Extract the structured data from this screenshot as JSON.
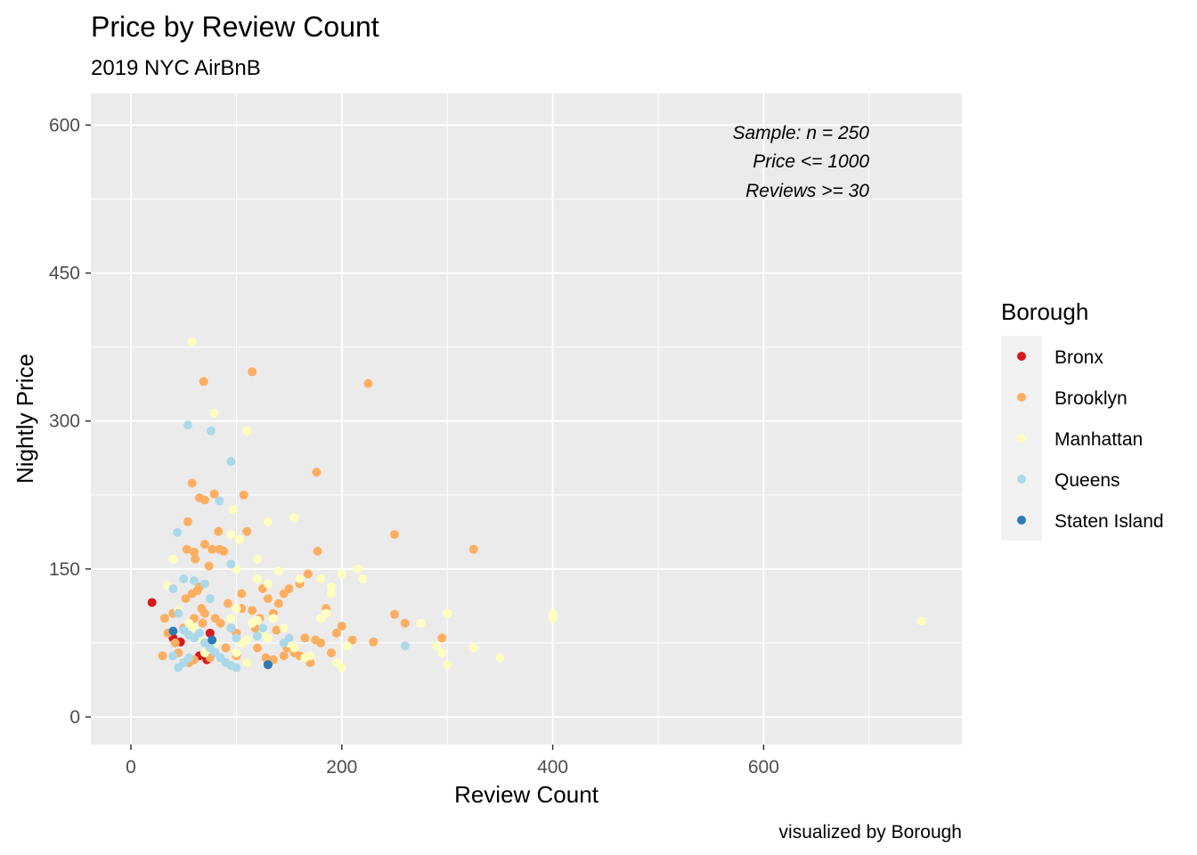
{
  "chart_data": {
    "type": "scatter",
    "title": "Price by Review Count",
    "subtitle": "2019 NYC AirBnB",
    "xlabel": "Review Count",
    "ylabel": "Nightly Price",
    "caption": "visualized by Borough",
    "xlim": [
      -38,
      788
    ],
    "ylim": [
      -28,
      632
    ],
    "x_ticks": [
      0,
      200,
      400,
      600
    ],
    "y_ticks": [
      0,
      150,
      300,
      450,
      600
    ],
    "grid": true,
    "legend_position": "right",
    "legend_title": "Borough",
    "annotation": [
      "Sample: n = 250",
      "Price <= 1000",
      "Reviews >= 30"
    ],
    "colors": {
      "Bronx": "#d7191c",
      "Brooklyn": "#fdae61",
      "Manhattan": "#ffffbf",
      "Queens": "#abd9e9",
      "Staten Island": "#2c7bb6",
      "panel": "#ebebeb",
      "grid": "#ffffff"
    },
    "series": [
      {
        "name": "Bronx",
        "points": [
          [
            20,
            116
          ],
          [
            40,
            80
          ],
          [
            47,
            76
          ],
          [
            75,
            85
          ],
          [
            65,
            62
          ],
          [
            72,
            58
          ],
          [
            130,
            53
          ]
        ]
      },
      {
        "name": "Brooklyn",
        "points": [
          [
            69,
            340
          ],
          [
            115,
            350
          ],
          [
            225,
            338
          ],
          [
            176,
            248
          ],
          [
            58,
            237
          ],
          [
            65,
            222
          ],
          [
            70,
            220
          ],
          [
            79,
            226
          ],
          [
            107,
            225
          ],
          [
            54,
            198
          ],
          [
            83,
            188
          ],
          [
            110,
            188
          ],
          [
            250,
            185
          ],
          [
            325,
            170
          ],
          [
            53,
            170
          ],
          [
            60,
            167
          ],
          [
            70,
            175
          ],
          [
            77,
            170
          ],
          [
            84,
            170
          ],
          [
            88,
            168
          ],
          [
            177,
            168
          ],
          [
            61,
            160
          ],
          [
            74,
            153
          ],
          [
            32,
            100
          ],
          [
            40,
            105
          ],
          [
            52,
            120
          ],
          [
            58,
            125
          ],
          [
            63,
            128
          ],
          [
            65,
            132
          ],
          [
            67,
            110
          ],
          [
            70,
            105
          ],
          [
            80,
            100
          ],
          [
            85,
            95
          ],
          [
            95,
            90
          ],
          [
            100,
            85
          ],
          [
            105,
            110
          ],
          [
            115,
            108
          ],
          [
            125,
            130
          ],
          [
            130,
            120
          ],
          [
            135,
            105
          ],
          [
            140,
            115
          ],
          [
            145,
            125
          ],
          [
            150,
            130
          ],
          [
            160,
            135
          ],
          [
            165,
            80
          ],
          [
            175,
            78
          ],
          [
            180,
            75
          ],
          [
            185,
            110
          ],
          [
            190,
            65
          ],
          [
            200,
            92
          ],
          [
            210,
            78
          ],
          [
            230,
            76
          ],
          [
            250,
            104
          ],
          [
            260,
            95
          ],
          [
            295,
            80
          ],
          [
            30,
            62
          ],
          [
            45,
            65
          ],
          [
            55,
            55
          ],
          [
            75,
            60
          ],
          [
            90,
            70
          ],
          [
            110,
            55
          ],
          [
            120,
            70
          ],
          [
            128,
            60
          ],
          [
            135,
            58
          ],
          [
            145,
            62
          ],
          [
            155,
            65
          ],
          [
            170,
            55
          ],
          [
            35,
            85
          ],
          [
            50,
            90
          ],
          [
            60,
            100
          ],
          [
            78,
            75
          ],
          [
            92,
            115
          ],
          [
            105,
            125
          ],
          [
            118,
            90
          ],
          [
            122,
            100
          ],
          [
            138,
            88
          ],
          [
            148,
            70
          ],
          [
            168,
            145
          ],
          [
            180,
            140
          ],
          [
            195,
            85
          ],
          [
            130,
            57
          ],
          [
            160,
            62
          ],
          [
            60,
            58
          ],
          [
            68,
            95
          ],
          [
            42,
            75
          ],
          [
            100,
            62
          ]
        ]
      },
      {
        "name": "Manhattan",
        "points": [
          [
            58,
            380
          ],
          [
            79,
            308
          ],
          [
            110,
            290
          ],
          [
            97,
            210
          ],
          [
            120,
            160
          ],
          [
            130,
            198
          ],
          [
            155,
            202
          ],
          [
            103,
            180
          ],
          [
            95,
            185
          ],
          [
            100,
            150
          ],
          [
            120,
            140
          ],
          [
            130,
            135
          ],
          [
            140,
            148
          ],
          [
            160,
            140
          ],
          [
            180,
            140
          ],
          [
            190,
            132
          ],
          [
            200,
            145
          ],
          [
            215,
            150
          ],
          [
            220,
            140
          ],
          [
            275,
            95
          ],
          [
            300,
            105
          ],
          [
            400,
            105
          ],
          [
            400,
            100
          ],
          [
            750,
            97
          ],
          [
            290,
            72
          ],
          [
            295,
            65
          ],
          [
            300,
            53
          ],
          [
            325,
            70
          ],
          [
            350,
            60
          ],
          [
            40,
            160
          ],
          [
            35,
            133
          ],
          [
            45,
            108
          ],
          [
            55,
            95
          ],
          [
            65,
            80
          ],
          [
            75,
            70
          ],
          [
            85,
            60
          ],
          [
            90,
            55
          ],
          [
            100,
            65
          ],
          [
            105,
            75
          ],
          [
            110,
            78
          ],
          [
            115,
            95
          ],
          [
            120,
            98
          ],
          [
            125,
            85
          ],
          [
            130,
            80
          ],
          [
            135,
            100
          ],
          [
            145,
            90
          ],
          [
            150,
            75
          ],
          [
            155,
            70
          ],
          [
            165,
            60
          ],
          [
            170,
            62
          ],
          [
            180,
            100
          ],
          [
            185,
            105
          ],
          [
            190,
            125
          ],
          [
            195,
            55
          ],
          [
            200,
            50
          ],
          [
            205,
            72
          ],
          [
            95,
            100
          ],
          [
            110,
            55
          ],
          [
            70,
            65
          ],
          [
            80,
            75
          ],
          [
            100,
            110
          ],
          [
            60,
            90
          ]
        ]
      },
      {
        "name": "Queens",
        "points": [
          [
            54,
            296
          ],
          [
            76,
            290
          ],
          [
            95,
            259
          ],
          [
            84,
            219
          ],
          [
            44,
            187
          ],
          [
            95,
            155
          ],
          [
            40,
            130
          ],
          [
            50,
            140
          ],
          [
            60,
            138
          ],
          [
            70,
            135
          ],
          [
            75,
            120
          ],
          [
            45,
            105
          ],
          [
            50,
            88
          ],
          [
            55,
            83
          ],
          [
            60,
            80
          ],
          [
            65,
            85
          ],
          [
            70,
            75
          ],
          [
            75,
            70
          ],
          [
            80,
            65
          ],
          [
            85,
            60
          ],
          [
            90,
            55
          ],
          [
            95,
            52
          ],
          [
            100,
            50
          ],
          [
            45,
            50
          ],
          [
            50,
            55
          ],
          [
            55,
            60
          ],
          [
            40,
            62
          ],
          [
            120,
            82
          ],
          [
            125,
            90
          ],
          [
            145,
            75
          ],
          [
            150,
            80
          ],
          [
            260,
            72
          ],
          [
            95,
            90
          ],
          [
            100,
            80
          ]
        ]
      },
      {
        "name": "Staten Island",
        "points": [
          [
            40,
            87
          ],
          [
            77,
            78
          ],
          [
            130,
            53
          ]
        ]
      }
    ]
  }
}
